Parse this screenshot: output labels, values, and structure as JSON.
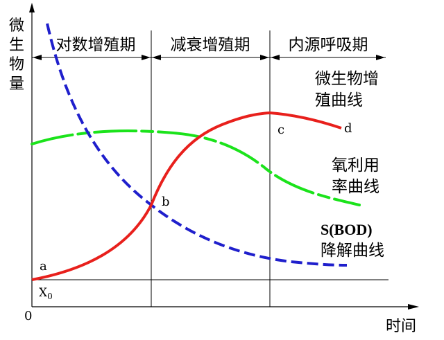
{
  "y_axis_label": "微生物量",
  "x_axis_label": "时间",
  "origin_label": "0",
  "x0_label": "X",
  "x0_sub": "0",
  "phases": [
    "对数增殖期",
    "减衰增殖期",
    "内源呼吸期"
  ],
  "point_labels": {
    "a": "a",
    "b": "b",
    "c": "c",
    "d": "d"
  },
  "curve_labels": {
    "growth": [
      "微生物增",
      "殖曲线"
    ],
    "oxygen": [
      "氧利用",
      "率曲线"
    ],
    "bod": [
      "S(BOD)",
      "降解曲线"
    ]
  },
  "colors": {
    "growth": "#e8201c",
    "oxygen": "#1be31b",
    "bod": "#1f1fcc",
    "lines": "#000000"
  }
}
